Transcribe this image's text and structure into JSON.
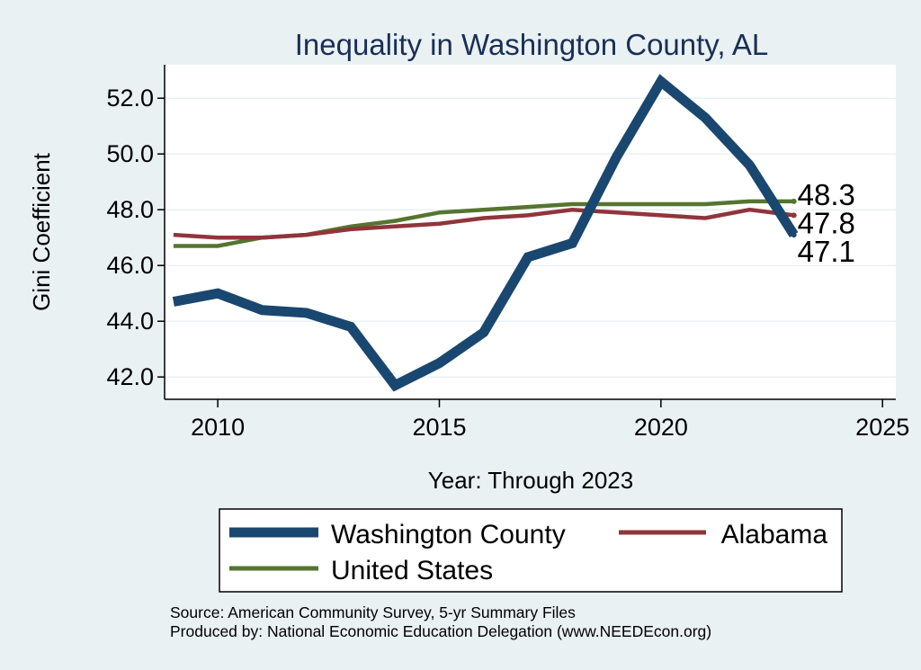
{
  "chart_data": {
    "type": "line",
    "title": "Inequality in Washington County, AL",
    "xlabel": "Year: Through 2023",
    "ylabel": "Gini Coefficient",
    "xlim": [
      2008.8,
      2025.3
    ],
    "ylim": [
      41.2,
      53.2
    ],
    "xticks": [
      2010,
      2015,
      2020,
      2025
    ],
    "yticks": [
      42,
      44,
      46,
      48,
      50,
      52
    ],
    "ytick_labels": [
      "42.0",
      "44.0",
      "46.0",
      "48.0",
      "50.0",
      "52.0"
    ],
    "x": [
      2009,
      2010,
      2011,
      2012,
      2013,
      2014,
      2015,
      2016,
      2017,
      2018,
      2019,
      2020,
      2021,
      2022,
      2023
    ],
    "series": [
      {
        "name": "Washington County",
        "color": "#1a476f",
        "values": [
          44.7,
          45.0,
          44.4,
          44.3,
          43.8,
          41.7,
          42.5,
          43.6,
          46.3,
          46.8,
          49.9,
          52.6,
          51.3,
          49.6,
          47.1
        ],
        "end_label": "47.1"
      },
      {
        "name": "Alabama",
        "color": "#90353b",
        "values": [
          47.1,
          47.0,
          47.0,
          47.1,
          47.3,
          47.4,
          47.5,
          47.7,
          47.8,
          48.0,
          47.9,
          47.8,
          47.7,
          48.0,
          47.8
        ],
        "end_label": "47.8"
      },
      {
        "name": "United States",
        "color": "#55752f",
        "values": [
          46.7,
          46.7,
          47.0,
          47.1,
          47.4,
          47.6,
          47.9,
          48.0,
          48.1,
          48.2,
          48.2,
          48.2,
          48.2,
          48.3,
          48.3
        ],
        "end_label": "48.3"
      }
    ],
    "legend": {
      "position": "bottom",
      "entries": [
        "Washington County",
        "Alabama",
        "United States"
      ]
    },
    "grid": true
  },
  "footer": {
    "source_line": "Source: American Community Survey, 5-yr Summary Files",
    "produced_line": "Produced by: National Economic Education Delegation (www.NEEDEcon.org)"
  },
  "colors": {
    "background": "#eaf1f3",
    "plot_background": "#ffffff",
    "title": "#1a2f55",
    "grid": "#eaf1f3"
  }
}
